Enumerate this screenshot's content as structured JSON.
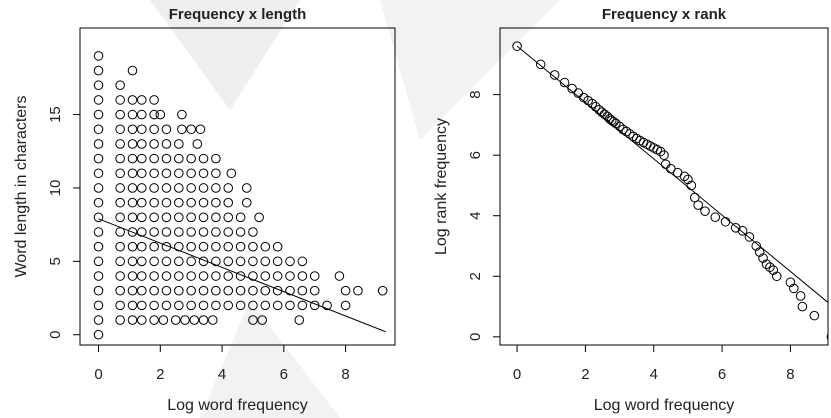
{
  "chart_data": [
    {
      "type": "scatter",
      "title": "Frequency x length",
      "x_label": "Log word frequency",
      "y_label": "Word length in characters",
      "xlim": [
        -0.6,
        9.6
      ],
      "ylim": [
        -0.7,
        20.9
      ],
      "xticks": [
        0,
        2,
        4,
        6,
        8
      ],
      "yticks": [
        0,
        5,
        10,
        15
      ],
      "color": "#000000",
      "fit_line": {
        "x": [
          0,
          9.3
        ],
        "y": [
          7.9,
          0.2
        ]
      },
      "x": [
        0,
        0,
        0.7,
        1.1,
        1.4,
        1.8,
        2.1,
        2.5,
        2.8,
        3.1,
        3.4,
        3.7,
        5.0,
        5.3,
        6.5,
        0,
        0.7,
        1.1,
        1.4,
        1.8,
        2.2,
        2.6,
        3.0,
        3.4,
        3.8,
        4.2,
        4.6,
        5.0,
        5.4,
        5.8,
        6.2,
        6.6,
        7.0,
        7.4,
        8.0,
        0,
        0.7,
        1.1,
        1.4,
        1.8,
        2.2,
        2.6,
        3.0,
        3.4,
        3.8,
        4.2,
        4.6,
        5.0,
        5.4,
        5.8,
        6.2,
        6.6,
        7.0,
        8.0,
        8.4,
        9.2,
        0,
        0.7,
        1.1,
        1.4,
        1.8,
        2.2,
        2.6,
        3.0,
        3.4,
        3.8,
        4.2,
        4.6,
        5.0,
        5.4,
        5.8,
        6.2,
        6.6,
        7.0,
        7.8,
        0,
        0.7,
        1.1,
        1.4,
        1.8,
        2.2,
        2.6,
        3.0,
        3.4,
        3.8,
        4.2,
        4.6,
        5.0,
        5.4,
        5.8,
        6.2,
        6.6,
        0,
        0.7,
        1.1,
        1.4,
        1.8,
        2.2,
        2.6,
        3.0,
        3.4,
        3.8,
        4.2,
        4.6,
        5.0,
        5.4,
        5.8,
        0,
        0.7,
        1.1,
        1.4,
        1.8,
        2.2,
        2.6,
        3.0,
        3.4,
        3.8,
        4.2,
        4.6,
        5.0,
        0,
        0.7,
        1.1,
        1.4,
        1.8,
        2.2,
        2.6,
        3.0,
        3.4,
        3.8,
        4.2,
        4.6,
        5.2,
        0,
        0.7,
        1.1,
        1.4,
        1.8,
        2.2,
        2.6,
        3.0,
        3.4,
        3.8,
        4.2,
        4.8,
        0,
        0.7,
        1.1,
        1.4,
        1.8,
        2.2,
        2.6,
        3.0,
        3.4,
        3.8,
        4.2,
        4.8,
        0,
        0.7,
        1.1,
        1.4,
        1.8,
        2.2,
        2.6,
        3.0,
        3.4,
        3.8,
        4.3,
        0,
        0.7,
        1.1,
        1.4,
        1.8,
        2.2,
        2.6,
        3.0,
        3.4,
        3.8,
        0,
        0.7,
        1.1,
        1.4,
        1.8,
        2.2,
        2.6,
        3.2,
        0,
        0.7,
        1.1,
        1.4,
        1.8,
        2.2,
        2.7,
        3.0,
        3.3,
        0,
        0.7,
        1.1,
        1.4,
        1.8,
        2.0,
        2.7,
        0,
        0.7,
        1.1,
        1.4,
        1.8,
        0,
        0.7,
        0,
        1.1,
        0
      ],
      "values": [
        0,
        1,
        1,
        1,
        1,
        1,
        1,
        1,
        1,
        1,
        1,
        1,
        1,
        1,
        1,
        2,
        2,
        2,
        2,
        2,
        2,
        2,
        2,
        2,
        2,
        2,
        2,
        2,
        2,
        2,
        2,
        2,
        2,
        2,
        2,
        3,
        3,
        3,
        3,
        3,
        3,
        3,
        3,
        3,
        3,
        3,
        3,
        3,
        3,
        3,
        3,
        3,
        3,
        3,
        3,
        3,
        4,
        4,
        4,
        4,
        4,
        4,
        4,
        4,
        4,
        4,
        4,
        4,
        4,
        4,
        4,
        4,
        4,
        4,
        4,
        5,
        5,
        5,
        5,
        5,
        5,
        5,
        5,
        5,
        5,
        5,
        5,
        5,
        5,
        5,
        5,
        5,
        6,
        6,
        6,
        6,
        6,
        6,
        6,
        6,
        6,
        6,
        6,
        6,
        6,
        6,
        6,
        7,
        7,
        7,
        7,
        7,
        7,
        7,
        7,
        7,
        7,
        7,
        7,
        7,
        8,
        8,
        8,
        8,
        8,
        8,
        8,
        8,
        8,
        8,
        8,
        8,
        8,
        9,
        9,
        9,
        9,
        9,
        9,
        9,
        9,
        9,
        9,
        9,
        9,
        10,
        10,
        10,
        10,
        10,
        10,
        10,
        10,
        10,
        10,
        10,
        10,
        11,
        11,
        11,
        11,
        11,
        11,
        11,
        11,
        11,
        11,
        11,
        12,
        12,
        12,
        12,
        12,
        12,
        12,
        12,
        12,
        12,
        13,
        13,
        13,
        13,
        13,
        13,
        13,
        13,
        14,
        14,
        14,
        14,
        14,
        14,
        14,
        14,
        14,
        15,
        15,
        15,
        15,
        15,
        15,
        15,
        16,
        16,
        16,
        16,
        16,
        17,
        17,
        18,
        18,
        19
      ]
    },
    {
      "type": "scatter",
      "title": "Frequency x rank",
      "x_label": "Log word frequency",
      "y_label": "Log rank frequency",
      "xlim": [
        -0.5,
        9.1
      ],
      "ylim": [
        -0.27,
        10.2
      ],
      "xticks": [
        0,
        2,
        4,
        6,
        8
      ],
      "yticks": [
        0,
        2,
        4,
        6,
        8
      ],
      "color": "#000000",
      "fit_line": {
        "x": [
          0,
          9.3
        ],
        "y": [
          9.6,
          0.95
        ]
      },
      "x": [
        0,
        0.69,
        1.1,
        1.39,
        1.61,
        1.79,
        1.95,
        2.08,
        2.2,
        2.3,
        2.4,
        2.48,
        2.56,
        2.64,
        2.71,
        2.77,
        2.83,
        2.89,
        3.0,
        3.1,
        3.2,
        3.3,
        3.4,
        3.5,
        3.6,
        3.7,
        3.8,
        3.9,
        4.0,
        4.1,
        4.2,
        4.3,
        4.35,
        4.5,
        4.7,
        4.9,
        5.0,
        5.1,
        5.2,
        5.3,
        5.5,
        5.8,
        6.1,
        6.4,
        6.6,
        6.8,
        7.0,
        7.1,
        7.2,
        7.3,
        7.4,
        7.5,
        7.6,
        8.0,
        8.1,
        8.3,
        8.35,
        8.7,
        9.2
      ],
      "values": [
        9.6,
        9.0,
        8.65,
        8.4,
        8.2,
        8.05,
        7.9,
        7.8,
        7.7,
        7.6,
        7.5,
        7.42,
        7.35,
        7.28,
        7.2,
        7.15,
        7.1,
        7.05,
        6.95,
        6.85,
        6.78,
        6.7,
        6.62,
        6.55,
        6.48,
        6.42,
        6.36,
        6.3,
        6.24,
        6.18,
        6.12,
        6.0,
        5.7,
        5.55,
        5.42,
        5.3,
        5.2,
        5.0,
        4.6,
        4.35,
        4.15,
        3.95,
        3.8,
        3.6,
        3.5,
        3.3,
        3.0,
        2.8,
        2.6,
        2.4,
        2.3,
        2.2,
        2.0,
        1.8,
        1.6,
        1.35,
        1.0,
        0.7,
        0
      ]
    }
  ]
}
